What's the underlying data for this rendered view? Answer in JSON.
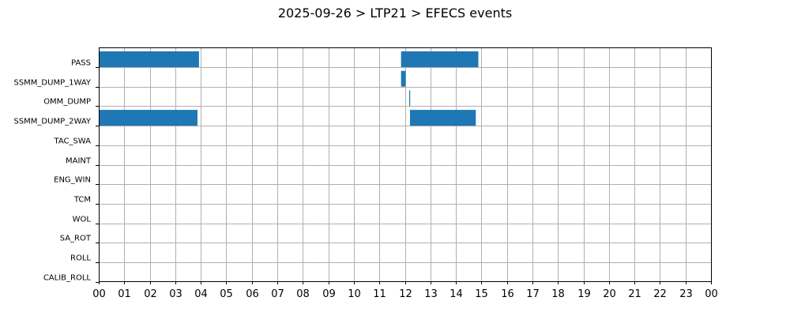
{
  "chart_data": {
    "type": "gantt",
    "title": "2025-09-26 > LTP21 > EFECS events",
    "x_unit": "hour",
    "xlim": [
      0,
      24
    ],
    "x_tick_labels": [
      "00",
      "01",
      "02",
      "03",
      "04",
      "05",
      "06",
      "07",
      "08",
      "09",
      "10",
      "11",
      "12",
      "13",
      "14",
      "15",
      "16",
      "17",
      "18",
      "19",
      "20",
      "21",
      "22",
      "23",
      "00"
    ],
    "categories": [
      "PASS",
      "SSMM_DUMP_1WAY",
      "OMM_DUMP",
      "SSMM_DUMP_2WAY",
      "TAC_SWA",
      "MAINT",
      "ENG_WIN",
      "TCM",
      "WOL",
      "SA_ROT",
      "ROLL",
      "CALIB_ROLL"
    ],
    "bar_color": "#1f77b4",
    "grid": true,
    "events": [
      {
        "category": "PASS",
        "start": 0.0,
        "end": 3.93
      },
      {
        "category": "PASS",
        "start": 11.85,
        "end": 14.88
      },
      {
        "category": "SSMM_DUMP_1WAY",
        "start": 11.85,
        "end": 12.03
      },
      {
        "category": "OMM_DUMP",
        "start": 12.17,
        "end": 12.2
      },
      {
        "category": "SSMM_DUMP_2WAY",
        "start": 0.0,
        "end": 3.87
      },
      {
        "category": "SSMM_DUMP_2WAY",
        "start": 12.2,
        "end": 14.78
      }
    ]
  }
}
